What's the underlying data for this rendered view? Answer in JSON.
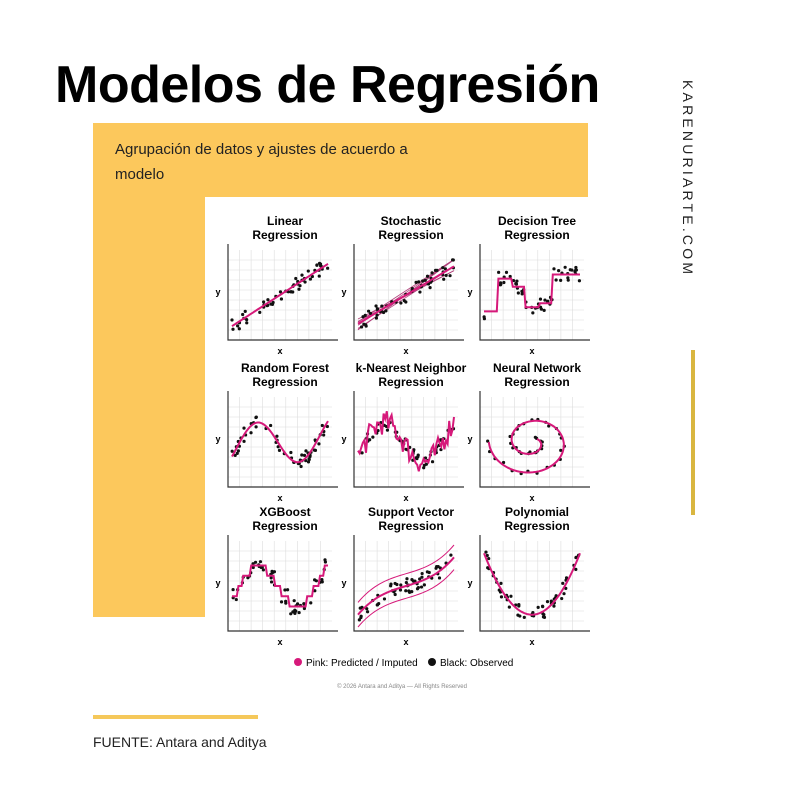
{
  "header": {
    "title": "Modelos de Regresión",
    "subtitle_lines": [
      "Agrupación de datos y ajustes de acuerdo a",
      "modelo"
    ]
  },
  "side_text": "KARENURIARTE.COM",
  "panels": [
    {
      "title": [
        "Linear",
        "Regression"
      ],
      "x_label": "x",
      "y_label": "y"
    },
    {
      "title": [
        "Stochastic",
        "Regression"
      ],
      "x_label": "x",
      "y_label": "y"
    },
    {
      "title": [
        "Decision Tree",
        "Regression"
      ],
      "x_label": "x",
      "y_label": "y"
    },
    {
      "title": [
        "Random Forest",
        "Regression"
      ],
      "x_label": "x",
      "y_label": "y"
    },
    {
      "title": [
        "k-Nearest Neighbor",
        "Regression"
      ],
      "x_label": "x",
      "y_label": "y"
    },
    {
      "title": [
        "Neural Network",
        "Regression"
      ],
      "x_label": "x",
      "y_label": "y"
    },
    {
      "title": [
        "XGBoost",
        "Regression"
      ],
      "x_label": "x",
      "y_label": "y"
    },
    {
      "title": [
        "Support Vector",
        "Regression"
      ],
      "x_label": "x",
      "y_label": "y"
    },
    {
      "title": [
        "Polynomial",
        "Regression"
      ],
      "x_label": "x",
      "y_label": "y"
    }
  ],
  "legend": [
    "Pink: Predicted / Imputed",
    "Black: Observed"
  ],
  "copyright": "© 2026 Antara and Aditya — All Rights Reserved",
  "footer": "FUENTE: Antara and Aditya"
}
